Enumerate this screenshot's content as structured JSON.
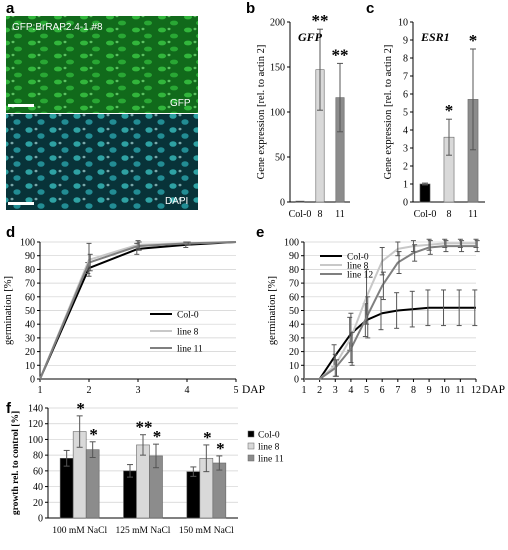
{
  "panels": {
    "a": {
      "label": "a",
      "top_text": "GFP:BrRAP2.4-1 #8",
      "top_channel": "GFP",
      "bottom_channel": "DAPI",
      "colors": {
        "gfp": "#1f9a2a",
        "dapi": "#27b7b7"
      }
    },
    "b": {
      "label": "b"
    },
    "c": {
      "label": "c"
    },
    "d": {
      "label": "d"
    },
    "e": {
      "label": "e"
    },
    "f": {
      "label": "f"
    }
  },
  "chart_data": [
    {
      "id": "b",
      "type": "bar",
      "title": "GFP",
      "ylabel": "Gene expression [rel. to actin 2]",
      "categories": [
        "Col-0",
        "8",
        "11"
      ],
      "values": [
        1,
        147,
        116
      ],
      "errors": [
        0,
        45,
        38
      ],
      "significance": [
        "",
        "**",
        "**"
      ],
      "ylim": [
        0,
        200
      ],
      "yticks": [
        "0",
        "50",
        "100",
        "150",
        "200"
      ],
      "colors": [
        "#000000",
        "#d9d9d9",
        "#8c8c8c"
      ]
    },
    {
      "id": "c",
      "type": "bar",
      "title": "ESR1",
      "ylabel": "Gene expression [rel. to actin 2]",
      "categories": [
        "Col-0",
        "8",
        "11"
      ],
      "values": [
        1.0,
        3.6,
        5.7
      ],
      "errors": [
        0.05,
        1.0,
        2.8
      ],
      "significance": [
        "",
        "*",
        "*"
      ],
      "ylim": [
        0,
        10
      ],
      "yticks": [
        "0",
        "1",
        "2",
        "3",
        "4",
        "5",
        "6",
        "7",
        "8",
        "9",
        "10"
      ],
      "colors": [
        "#000000",
        "#d9d9d9",
        "#8c8c8c"
      ]
    },
    {
      "id": "d",
      "type": "line",
      "ylabel": "germination [%]",
      "xlabel": "DAP",
      "x": [
        1,
        2,
        3,
        4,
        5
      ],
      "xlim": [
        1,
        5
      ],
      "ylim": [
        0,
        100
      ],
      "yticks": [
        "0",
        "10",
        "20",
        "30",
        "40",
        "50",
        "60",
        "70",
        "80",
        "90",
        "100"
      ],
      "xticks": [
        "1",
        "2",
        "3",
        "4",
        "5"
      ],
      "series": [
        {
          "name": "Col-0",
          "values": [
            0,
            81,
            95,
            98,
            100
          ],
          "errors": [
            0,
            4,
            4,
            2,
            0
          ],
          "color": "#000000",
          "width": 2
        },
        {
          "name": "line 8",
          "values": [
            0,
            87,
            98,
            99,
            100
          ],
          "errors": [
            0,
            12,
            3,
            1,
            0
          ],
          "color": "#c8c8c8",
          "width": 2
        },
        {
          "name": "line 11",
          "values": [
            0,
            85,
            97,
            99,
            100
          ],
          "errors": [
            0,
            6,
            3,
            1,
            0
          ],
          "color": "#7f7f7f",
          "width": 2
        }
      ],
      "legend": "right-middle"
    },
    {
      "id": "e",
      "type": "line",
      "ylabel": "germination [%]",
      "xlabel": "DAP",
      "x": [
        1,
        2,
        3,
        4,
        5,
        6,
        7,
        8,
        9,
        10,
        11,
        12
      ],
      "xlim": [
        1,
        12
      ],
      "ylim": [
        0,
        100
      ],
      "yticks": [
        "0",
        "10",
        "20",
        "30",
        "40",
        "50",
        "60",
        "70",
        "80",
        "90",
        "100"
      ],
      "xticks": [
        "1",
        "2",
        "3",
        "4",
        "5",
        "6",
        "7",
        "8",
        "9",
        "10",
        "11",
        "12"
      ],
      "series": [
        {
          "name": "Col-0",
          "values": [
            0,
            0,
            17,
            33,
            43,
            48,
            50,
            51,
            52,
            52,
            52,
            52
          ],
          "errors": [
            0,
            0,
            8,
            12,
            12,
            12,
            13,
            13,
            13,
            13,
            13,
            13
          ],
          "color": "#000000",
          "width": 2
        },
        {
          "name": "line 8",
          "values": [
            0,
            0,
            10,
            30,
            60,
            86,
            95,
            97,
            98,
            99,
            99,
            99
          ],
          "errors": [
            0,
            0,
            8,
            18,
            20,
            10,
            5,
            4,
            4,
            3,
            3,
            3
          ],
          "color": "#c8c8c8",
          "width": 2
        },
        {
          "name": "line 12",
          "values": [
            0,
            0,
            8,
            22,
            45,
            68,
            85,
            92,
            96,
            97,
            97,
            97
          ],
          "errors": [
            0,
            0,
            6,
            12,
            15,
            10,
            8,
            6,
            5,
            4,
            4,
            4
          ],
          "color": "#7f7f7f",
          "width": 2
        }
      ],
      "legend": "top-left"
    },
    {
      "id": "f",
      "type": "bar",
      "ylabel": "growth rel. to control [%]",
      "categories": [
        "100 mM NaCl",
        "125 mM NaCl",
        "150 mM NaCl"
      ],
      "series": [
        {
          "name": "Col-0",
          "values": [
            76,
            60,
            59
          ],
          "errors": [
            10,
            8,
            6
          ],
          "significance": [
            "",
            "",
            ""
          ],
          "color": "#000000"
        },
        {
          "name": "line 8",
          "values": [
            110,
            93,
            76
          ],
          "errors": [
            20,
            13,
            17
          ],
          "significance": [
            "*",
            "**",
            "*"
          ],
          "color": "#d9d9d9"
        },
        {
          "name": "line 11",
          "values": [
            87,
            79,
            70
          ],
          "errors": [
            10,
            15,
            9
          ],
          "significance": [
            "*",
            "*",
            "*"
          ],
          "color": "#8c8c8c"
        }
      ],
      "ylim": [
        0,
        140
      ],
      "yticks": [
        "0",
        "20",
        "40",
        "60",
        "80",
        "100",
        "120",
        "140"
      ],
      "legend": "right"
    }
  ]
}
